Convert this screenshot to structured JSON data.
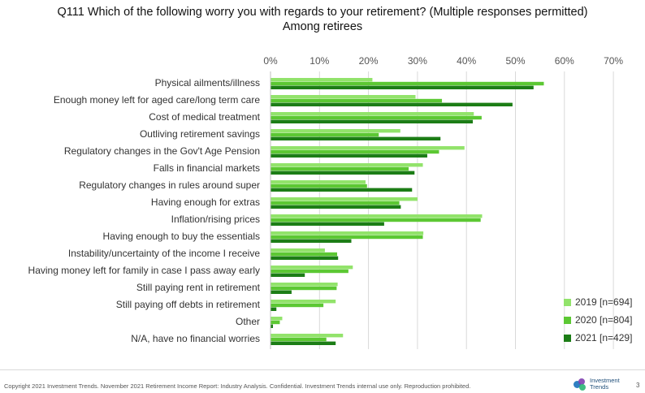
{
  "header": {
    "title_line1": "Q111 Which of the following worry you with regards to your retirement? (Multiple responses permitted)",
    "title_line2": "Among retirees"
  },
  "chart_data": {
    "type": "bar",
    "orientation": "horizontal",
    "categories": [
      "Physical ailments/illness",
      "Enough money left for aged care/long term care",
      "Cost of medical treatment",
      "Outliving retirement savings",
      "Regulatory changes in the Gov't Age Pension",
      "Falls in financial markets",
      "Regulatory changes in rules around super",
      "Having enough for extras",
      "Inflation/rising prices",
      "Having enough to buy the essentials",
      "Instability/uncertainty of the income I receive",
      "Having money left for family in case I pass away early",
      "Still paying rent in retirement",
      "Still paying off debts in retirement",
      "Other",
      "N/A, have no financial worries"
    ],
    "series": [
      {
        "name": "2019 [n=694]",
        "color": "#92e36b",
        "values": [
          20.8,
          29.6,
          41.5,
          26.5,
          39.6,
          31.1,
          19.4,
          30.0,
          43.2,
          31.2,
          11.1,
          16.8,
          13.7,
          13.3,
          2.4,
          14.8
        ]
      },
      {
        "name": "2020 [n=804]",
        "color": "#5cc833",
        "values": [
          55.8,
          35.0,
          43.1,
          22.1,
          34.4,
          28.2,
          19.7,
          26.3,
          42.9,
          31.1,
          13.6,
          15.9,
          13.5,
          10.8,
          1.9,
          11.4
        ]
      },
      {
        "name": "2021 [n=429]",
        "color": "#1c7d16",
        "values": [
          53.7,
          49.4,
          41.3,
          34.7,
          32.0,
          29.4,
          28.9,
          26.6,
          23.2,
          16.5,
          13.8,
          7.0,
          4.3,
          1.2,
          0.5,
          13.3
        ]
      }
    ],
    "ticks": [
      "0%",
      "10%",
      "20%",
      "30%",
      "40%",
      "50%",
      "60%",
      "70%"
    ],
    "xlim": [
      0,
      70
    ],
    "grid": true,
    "legend_position": "bottom-right"
  },
  "footer": {
    "copyright": "Copyright 2021 Investment Trends. November 2021 Retirement Income Report: Industry Analysis. Confidential. Investment Trends internal use only. Reproduction prohibited.",
    "logo_line1": "Investment",
    "logo_line2": "Trends",
    "page_number": "3"
  }
}
